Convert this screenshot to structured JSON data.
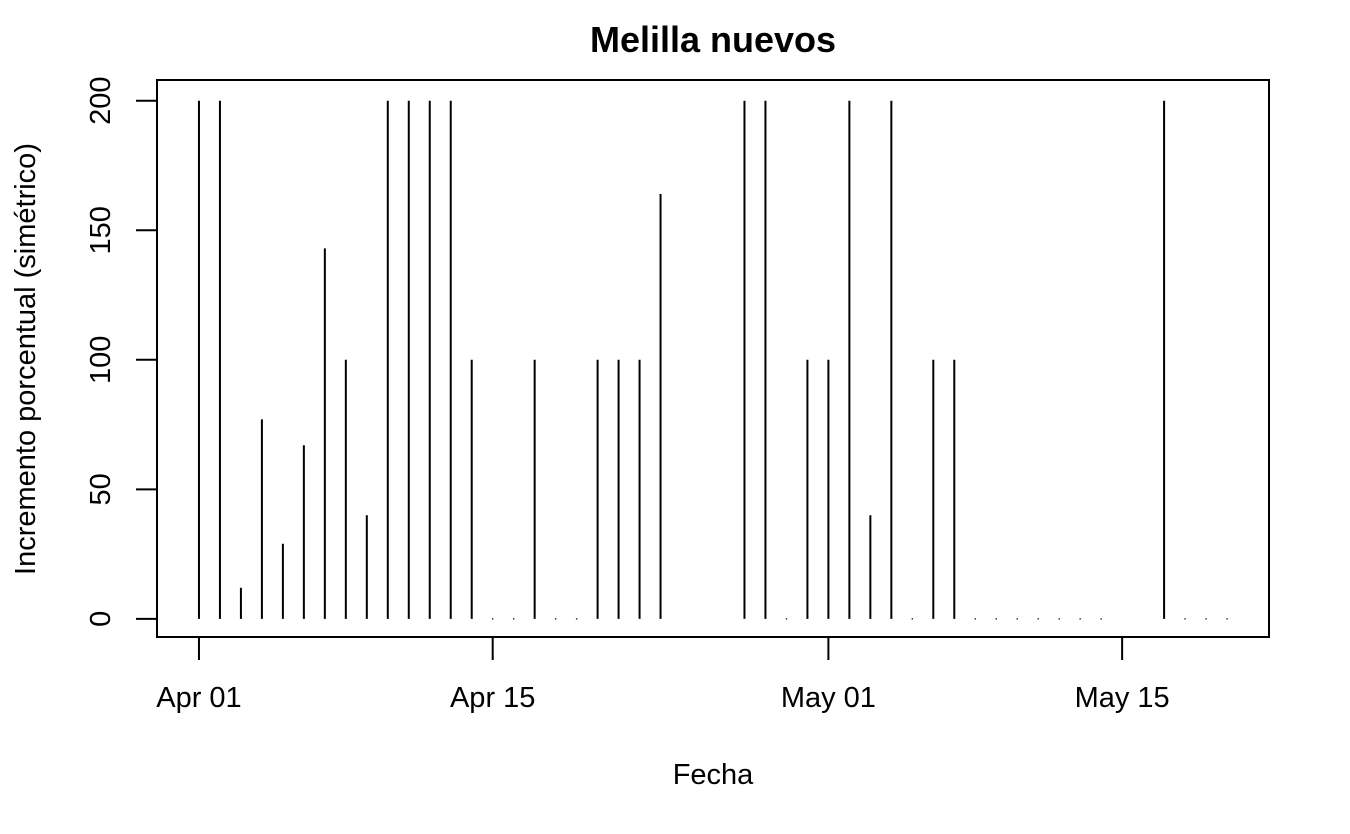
{
  "chart_data": {
    "type": "bar",
    "title": "Melilla nuevos",
    "xlabel": "Fecha",
    "ylabel": "Incremento porcentual (simétrico)",
    "x_tick_labels": [
      "Apr 01",
      "Apr 15",
      "May 01",
      "May 15"
    ],
    "x_tick_dates": [
      "2020-04-01",
      "2020-04-15",
      "2020-05-01",
      "2020-05-15"
    ],
    "y_tick_labels": [
      "0",
      "50",
      "100",
      "150",
      "200"
    ],
    "y_ticks": [
      0,
      50,
      100,
      150,
      200
    ],
    "ylim": [
      -7,
      208
    ],
    "xlim": [
      "2020-03-30",
      "2020-05-22"
    ],
    "grid": false,
    "series": [
      {
        "x": [
          "2020-04-01",
          "2020-04-02",
          "2020-04-03",
          "2020-04-04",
          "2020-04-05",
          "2020-04-06",
          "2020-04-07",
          "2020-04-08",
          "2020-04-09",
          "2020-04-10",
          "2020-04-11",
          "2020-04-12",
          "2020-04-13",
          "2020-04-14",
          "2020-04-15",
          "2020-04-16",
          "2020-04-17",
          "2020-04-18",
          "2020-04-19",
          "2020-04-20",
          "2020-04-21",
          "2020-04-22",
          "2020-04-23",
          "2020-04-27",
          "2020-04-28",
          "2020-04-29",
          "2020-04-30",
          "2020-05-01",
          "2020-05-02",
          "2020-05-03",
          "2020-05-04",
          "2020-05-05",
          "2020-05-06",
          "2020-05-07",
          "2020-05-08",
          "2020-05-09",
          "2020-05-10",
          "2020-05-11",
          "2020-05-12",
          "2020-05-13",
          "2020-05-14",
          "2020-05-17",
          "2020-05-18",
          "2020-05-19",
          "2020-05-20"
        ],
        "values": [
          200,
          200,
          12,
          77,
          29,
          67,
          143,
          100,
          40,
          200,
          200,
          200,
          200,
          100,
          0,
          0,
          100,
          0,
          0,
          100,
          100,
          100,
          164,
          200,
          200,
          0,
          100,
          100,
          200,
          40,
          200,
          0,
          100,
          100,
          0,
          0,
          0,
          0,
          0,
          0,
          0,
          200,
          0,
          0,
          0
        ]
      }
    ]
  }
}
